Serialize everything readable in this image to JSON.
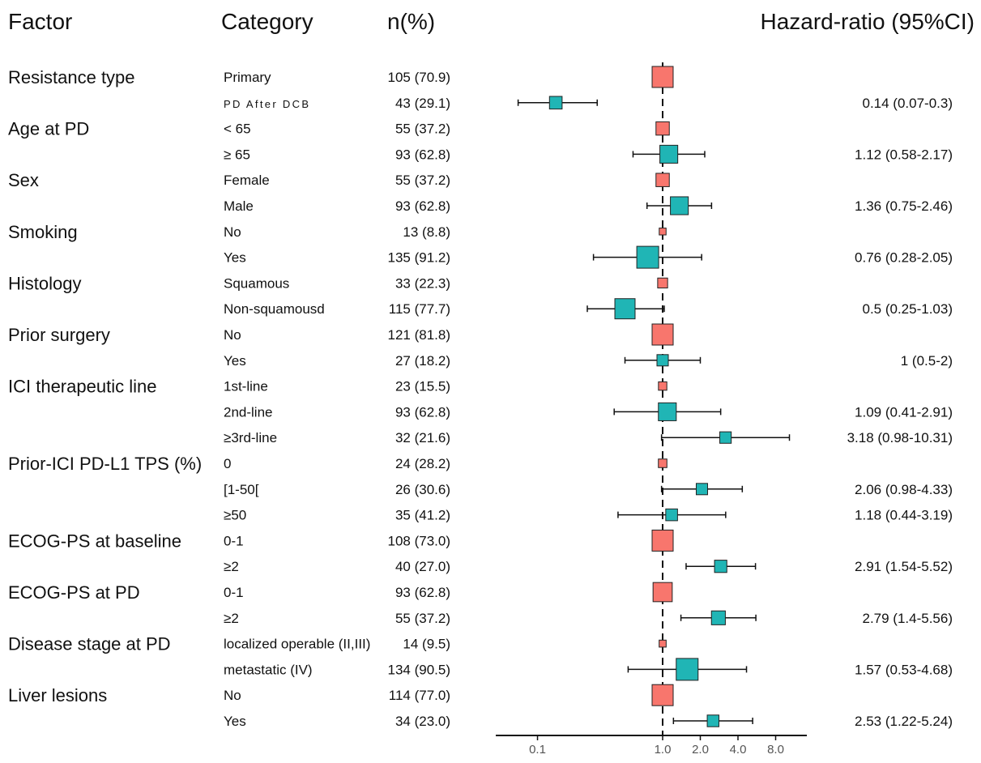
{
  "headers": {
    "factor": "Factor",
    "category": "Category",
    "n": "n(%)",
    "hr": "Hazard-ratio (95%CI)"
  },
  "colors": {
    "reference": "#F8766D",
    "comparison": "#20B5B5",
    "line": "#111111"
  },
  "chart_data": {
    "type": "forest",
    "x_scale": "log2",
    "x_ticks": [
      {
        "value": 0.1,
        "label": "0.1"
      },
      {
        "value": 1.0,
        "label": "1.0"
      },
      {
        "value": 2.0,
        "label": "2.0"
      },
      {
        "value": 4.0,
        "label": "4.0"
      },
      {
        "value": 8.0,
        "label": "8.0"
      }
    ],
    "reference_line": 1.0,
    "factors": [
      {
        "name": "Resistance type",
        "rows": [
          {
            "category": "Primary",
            "n": "105 (70.9)",
            "reference": true
          },
          {
            "category": "PD After DCB",
            "n": "43 (29.1)",
            "hr": 0.14,
            "lo": 0.07,
            "hi": 0.3,
            "label": "0.14 (0.07-0.3)"
          }
        ]
      },
      {
        "name": "Age at PD",
        "rows": [
          {
            "category": "< 65",
            "n": "55 (37.2)",
            "reference": true
          },
          {
            "category": "≥ 65",
            "n": "93 (62.8)",
            "hr": 1.12,
            "lo": 0.58,
            "hi": 2.17,
            "label": "1.12 (0.58-2.17)"
          }
        ]
      },
      {
        "name": "Sex",
        "rows": [
          {
            "category": "Female",
            "n": "55 (37.2)",
            "reference": true
          },
          {
            "category": "Male",
            "n": "93 (62.8)",
            "hr": 1.36,
            "lo": 0.75,
            "hi": 2.46,
            "label": "1.36 (0.75-2.46)"
          }
        ]
      },
      {
        "name": "Smoking",
        "rows": [
          {
            "category": "No",
            "n": "13 (8.8)",
            "reference": true
          },
          {
            "category": "Yes",
            "n": "135 (91.2)",
            "hr": 0.76,
            "lo": 0.28,
            "hi": 2.05,
            "label": "0.76 (0.28-2.05)"
          }
        ]
      },
      {
        "name": "Histology",
        "rows": [
          {
            "category": "Squamous",
            "n": "33 (22.3)",
            "reference": true
          },
          {
            "category": "Non-squamousd",
            "n": "115 (77.7)",
            "hr": 0.5,
            "lo": 0.25,
            "hi": 1.03,
            "label": "0.5 (0.25-1.03)"
          }
        ]
      },
      {
        "name": "Prior surgery",
        "rows": [
          {
            "category": "No",
            "n": "121 (81.8)",
            "reference": true
          },
          {
            "category": "Yes",
            "n": "27 (18.2)",
            "hr": 1,
            "lo": 0.5,
            "hi": 2,
            "label": "1 (0.5-2)"
          }
        ]
      },
      {
        "name": "ICI therapeutic line",
        "rows": [
          {
            "category": "1st-line",
            "n": "23 (15.5)",
            "reference": true
          },
          {
            "category": "2nd-line",
            "n": "93 (62.8)",
            "hr": 1.09,
            "lo": 0.41,
            "hi": 2.91,
            "label": "1.09 (0.41-2.91)"
          },
          {
            "category": "≥3rd-line",
            "n": "32 (21.6)",
            "hr": 3.18,
            "lo": 0.98,
            "hi": 10.31,
            "label": "3.18 (0.98-10.31)"
          }
        ]
      },
      {
        "name": "Prior-ICI PD-L1 TPS (%)",
        "rows": [
          {
            "category": "0",
            "n": "24 (28.2)",
            "reference": true
          },
          {
            "category": "[1-50[",
            "n": "26 (30.6)",
            "hr": 2.06,
            "lo": 0.98,
            "hi": 4.33,
            "label": "2.06 (0.98-4.33)"
          },
          {
            "category": "≥50",
            "n": "35 (41.2)",
            "hr": 1.18,
            "lo": 0.44,
            "hi": 3.19,
            "label": "1.18 (0.44-3.19)"
          }
        ]
      },
      {
        "name": "ECOG-PS at baseline",
        "rows": [
          {
            "category": "0-1",
            "n": "108 (73.0)",
            "reference": true
          },
          {
            "category": "≥2",
            "n": "40 (27.0)",
            "hr": 2.91,
            "lo": 1.54,
            "hi": 5.52,
            "label": "2.91 (1.54-5.52)"
          }
        ]
      },
      {
        "name": "ECOG-PS at PD",
        "rows": [
          {
            "category": "0-1",
            "n": "93 (62.8)",
            "reference": true
          },
          {
            "category": "≥2",
            "n": "55 (37.2)",
            "hr": 2.79,
            "lo": 1.4,
            "hi": 5.56,
            "label": "2.79 (1.4-5.56)"
          }
        ]
      },
      {
        "name": "Disease stage at PD",
        "rows": [
          {
            "category": "localized operable (II,III)",
            "n": "14 (9.5)",
            "reference": true
          },
          {
            "category": "metastatic (IV)",
            "n": "134 (90.5)",
            "hr": 1.57,
            "lo": 0.53,
            "hi": 4.68,
            "label": "1.57 (0.53-4.68)"
          }
        ]
      },
      {
        "name": "Liver lesions",
        "rows": [
          {
            "category": "No",
            "n": "114 (77.0)",
            "reference": true
          },
          {
            "category": "Yes",
            "n": "34 (23.0)",
            "hr": 2.53,
            "lo": 1.22,
            "hi": 5.24,
            "label": "2.53 (1.22-5.24)"
          }
        ]
      }
    ]
  }
}
